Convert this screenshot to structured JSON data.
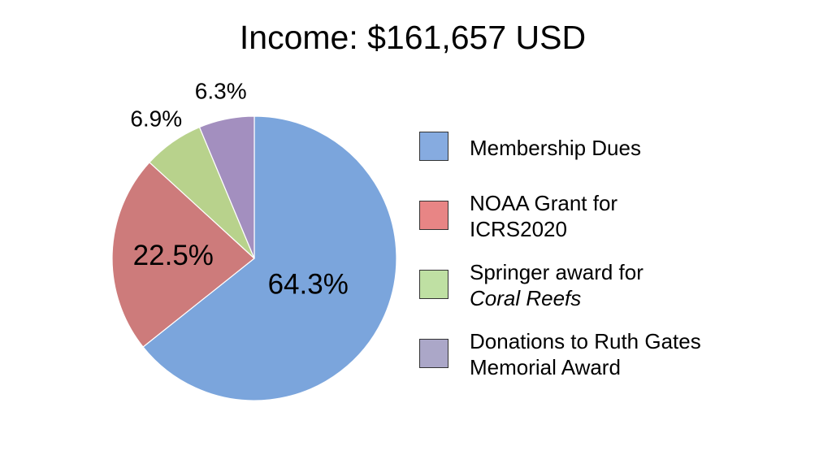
{
  "chart_data": {
    "type": "pie",
    "title": "Income: $161,657 USD",
    "categories": [
      "Membership Dues",
      "NOAA Grant for ICRS2020",
      "Springer award for Coral Reefs",
      "Donations to Ruth Gates Memorial Award"
    ],
    "values": [
      64.3,
      22.5,
      6.9,
      6.3
    ],
    "labels": [
      "64.3%",
      "22.5%",
      "6.9%",
      "6.3%"
    ],
    "colors": [
      "#7ba5dc",
      "#cd7b7b",
      "#b8d28c",
      "#a38fbf"
    ],
    "legend_placement": "right",
    "legend": [
      {
        "lines": [
          "Membership Dues"
        ],
        "color": "#86abe0"
      },
      {
        "lines": [
          "NOAA Grant for",
          "ICRS2020"
        ],
        "color": "#e88585"
      },
      {
        "lines": [
          "Springer award for"
        ],
        "italic_line": "Coral Reefs",
        "color": "#bfe0a3"
      },
      {
        "lines": [
          "Donations to Ruth Gates",
          "Memorial Award"
        ],
        "color": "#aba7c8"
      }
    ]
  }
}
